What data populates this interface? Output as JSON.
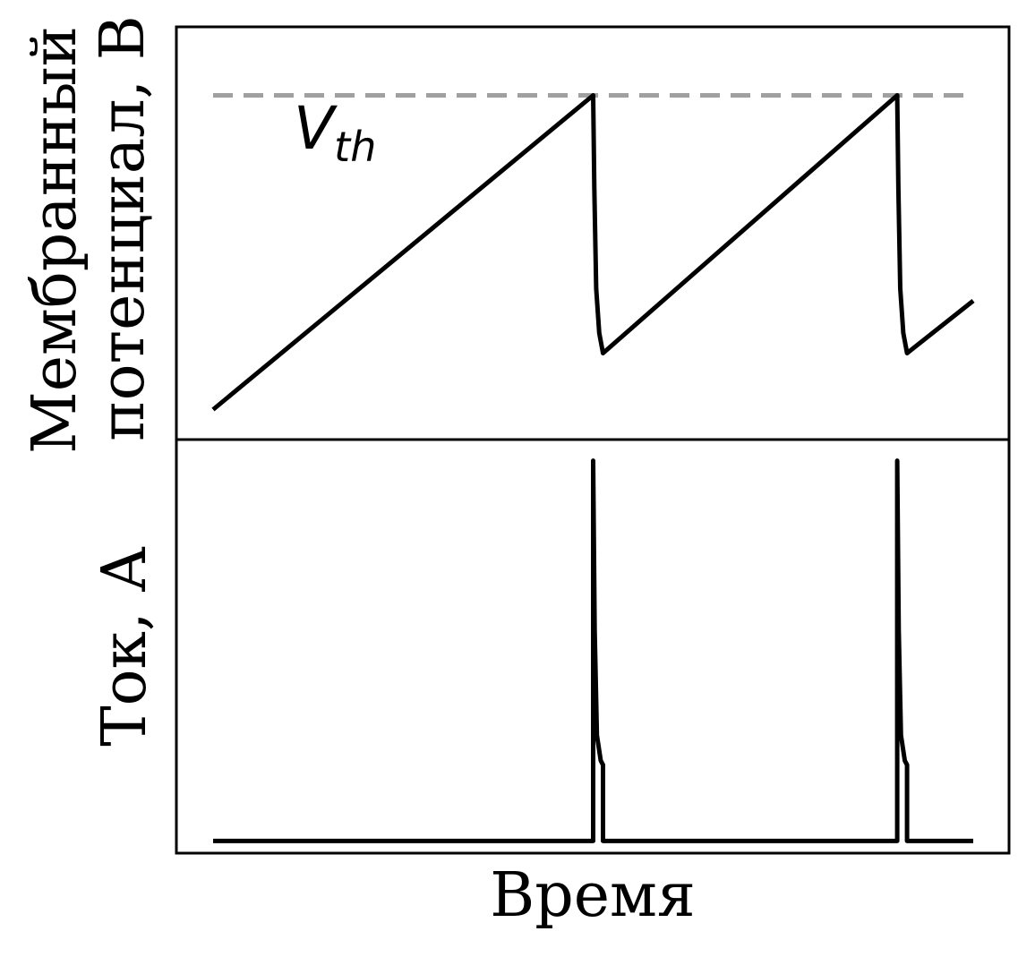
{
  "chart_data": [
    {
      "type": "line",
      "panel": "top",
      "title": "",
      "xlabel": "",
      "ylabel_line1": "Мембранный",
      "ylabel_line2": "потенциал, В",
      "xlim": [
        0,
        100
      ],
      "ylim": [
        0,
        100
      ],
      "grid": false,
      "ticks": false,
      "threshold": {
        "value": 83,
        "label_main": "V",
        "label_sub": "th",
        "style": "dashed",
        "color": "#a0a0a0"
      },
      "series": [
        {
          "color": "#000000",
          "points": [
            [
              0,
              5
            ],
            [
              50,
              83
            ],
            [
              50.15,
              60
            ],
            [
              50.4,
              35
            ],
            [
              50.8,
              24
            ],
            [
              51.3,
              19
            ],
            [
              90,
              83
            ],
            [
              90.15,
              60
            ],
            [
              90.4,
              35
            ],
            [
              90.8,
              24
            ],
            [
              91.3,
              19
            ],
            [
              100,
              32
            ]
          ]
        }
      ]
    },
    {
      "type": "line",
      "panel": "bottom",
      "title": "",
      "xlabel": "Время",
      "ylabel": "Ток, А",
      "xlim": [
        0,
        100
      ],
      "ylim": [
        0,
        100
      ],
      "grid": false,
      "ticks": false,
      "series": [
        {
          "color": "#000000",
          "points": [
            [
              0,
              5
            ],
            [
              50,
              5
            ],
            [
              50,
              95
            ],
            [
              50.2,
              55
            ],
            [
              50.5,
              30
            ],
            [
              51.0,
              24
            ],
            [
              51.3,
              23
            ],
            [
              51.3,
              5
            ],
            [
              90,
              5
            ],
            [
              90,
              95
            ],
            [
              90.2,
              55
            ],
            [
              90.5,
              30
            ],
            [
              91.0,
              24
            ],
            [
              91.3,
              23
            ],
            [
              91.3,
              5
            ],
            [
              100,
              5
            ]
          ]
        }
      ]
    }
  ]
}
